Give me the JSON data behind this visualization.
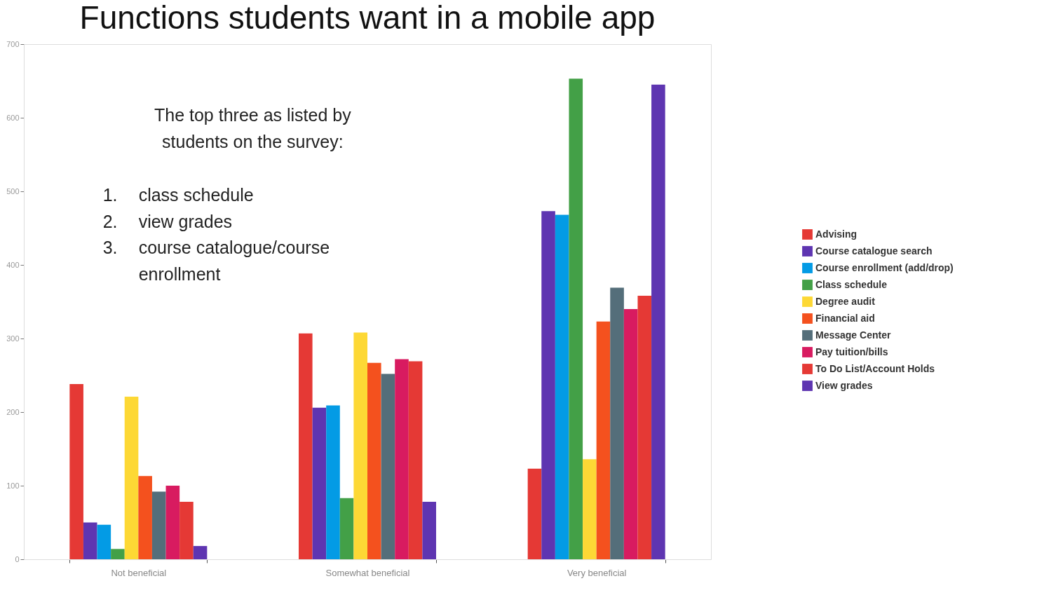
{
  "chart_data": {
    "type": "bar",
    "title": "Functions students want in a mobile app",
    "categories": [
      "Not beneficial",
      "Somewhat beneficial",
      "Very beneficial"
    ],
    "series": [
      {
        "name": "Advising",
        "color": "#e53935",
        "values": [
          238,
          307,
          123
        ]
      },
      {
        "name": "Course catalogue search",
        "color": "#5e35b1",
        "values": [
          50,
          206,
          473
        ]
      },
      {
        "name": "Course enrollment (add/drop)",
        "color": "#039be5",
        "values": [
          47,
          209,
          468
        ]
      },
      {
        "name": "Class schedule",
        "color": "#43a047",
        "values": [
          14,
          83,
          653
        ]
      },
      {
        "name": "Degree audit",
        "color": "#fdd835",
        "values": [
          221,
          308,
          136
        ]
      },
      {
        "name": "Financial aid",
        "color": "#f4511e",
        "values": [
          113,
          267,
          323
        ]
      },
      {
        "name": "Message Center",
        "color": "#546e7a",
        "values": [
          92,
          252,
          369
        ]
      },
      {
        "name": "Pay tuition/bills",
        "color": "#d81b60",
        "values": [
          100,
          272,
          340
        ]
      },
      {
        "name": "To Do List/Account Holds",
        "color": "#e53935",
        "values": [
          78,
          269,
          358
        ]
      },
      {
        "name": "View grades",
        "color": "#5e35b1",
        "values": [
          18,
          78,
          645
        ]
      }
    ],
    "ylim": [
      0,
      700
    ],
    "yticks": [
      0,
      100,
      200,
      300,
      400,
      500,
      600,
      700
    ],
    "grid": false,
    "legend": "right",
    "annotations": [
      "The top three as listed by students on the survey:",
      "1. class schedule",
      "2. view grades",
      "3. course catalogue/course enrollment"
    ]
  }
}
